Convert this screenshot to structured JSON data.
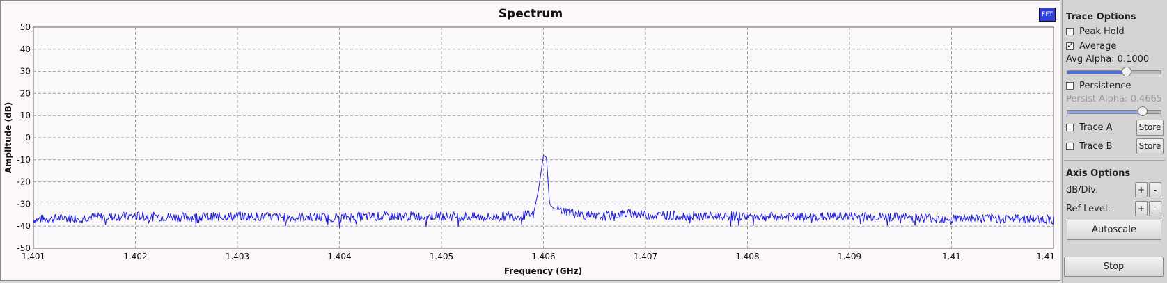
{
  "plot": {
    "title": "Spectrum",
    "badge": "FFT",
    "xlabel": "Frequency (GHz)",
    "ylabel": "Amplitude (dB)",
    "trace_color": "#2020e0"
  },
  "chart_data": {
    "type": "line",
    "title": "Spectrum",
    "xlabel": "Frequency (GHz)",
    "ylabel": "Amplitude (dB)",
    "xlim": [
      1.401,
      1.411
    ],
    "ylim": [
      -50,
      50
    ],
    "grid": true,
    "x_ticks": [
      "1.401",
      "1.402",
      "1.403",
      "1.404",
      "1.405",
      "1.406",
      "1.407",
      "1.408",
      "1.409",
      "1.41",
      "1.41"
    ],
    "y_ticks": [
      "50",
      "40",
      "30",
      "20",
      "10",
      "0",
      "-10",
      "-20",
      "-30",
      "-40",
      "-50"
    ],
    "series": [
      {
        "x": [
          1.401,
          1.4015,
          1.402,
          1.4025,
          1.403,
          1.4035,
          1.404,
          1.4045,
          1.405,
          1.4055,
          1.4059,
          1.40595,
          1.406,
          1.40603,
          1.40606,
          1.4061,
          1.4065,
          1.4069,
          1.407,
          1.4075,
          1.408,
          1.4085,
          1.409,
          1.4095,
          1.41,
          1.4105,
          1.411
        ],
        "values": [
          -37,
          -36,
          -35.5,
          -36,
          -35.5,
          -36,
          -36,
          -35.5,
          -35.5,
          -36,
          -35,
          -24,
          -8,
          -9,
          -30,
          -32,
          -36,
          -34,
          -35,
          -35.5,
          -35.5,
          -36,
          -35.5,
          -36,
          -36.5,
          -36.5,
          -37
        ]
      }
    ]
  },
  "trace_options": {
    "title": "Trace Options",
    "peak_hold": {
      "label": "Peak Hold",
      "checked": false
    },
    "average": {
      "label": "Average",
      "checked": true
    },
    "avg_alpha_label": "Avg Alpha: 0.1000",
    "avg_alpha_value": 0.63,
    "persistence": {
      "label": "Persistence",
      "checked": false
    },
    "persist_alpha_label": "Persist Alpha: 0.4665",
    "persist_alpha_value": 0.8,
    "trace_a": {
      "label": "Trace A",
      "store": "Store"
    },
    "trace_b": {
      "label": "Trace B",
      "store": "Store"
    }
  },
  "axis_options": {
    "title": "Axis Options",
    "db_div_label": "dB/Div:",
    "ref_level_label": "Ref Level:",
    "plus": "+",
    "minus": "-",
    "autoscale": "Autoscale"
  },
  "stop_label": "Stop"
}
